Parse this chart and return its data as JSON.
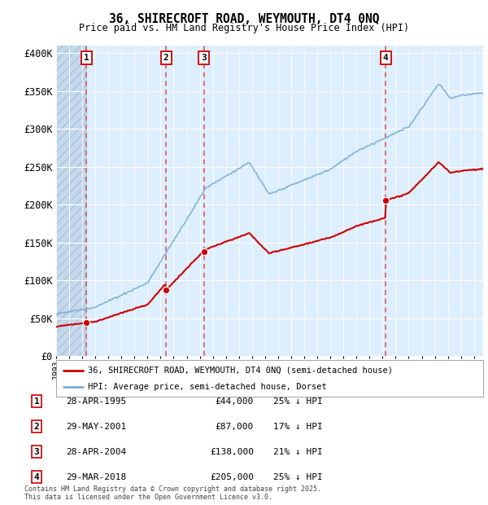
{
  "title": "36, SHIRECROFT ROAD, WEYMOUTH, DT4 0NQ",
  "subtitle": "Price paid vs. HM Land Registry's House Price Index (HPI)",
  "ylabel_ticks": [
    "£0",
    "£50K",
    "£100K",
    "£150K",
    "£200K",
    "£250K",
    "£300K",
    "£350K",
    "£400K"
  ],
  "ytick_values": [
    0,
    50000,
    100000,
    150000,
    200000,
    250000,
    300000,
    350000,
    400000
  ],
  "ylim": [
    0,
    410000
  ],
  "xlim_start": 1993.0,
  "xlim_end": 2025.7,
  "transactions": [
    {
      "num": 1,
      "date": "28-APR-1995",
      "price": 44000,
      "year": 1995.32,
      "pct": "25%",
      "dir": "↓"
    },
    {
      "num": 2,
      "date": "29-MAY-2001",
      "price": 87000,
      "year": 2001.41,
      "pct": "17%",
      "dir": "↓"
    },
    {
      "num": 3,
      "date": "28-APR-2004",
      "price": 138000,
      "year": 2004.32,
      "pct": "21%",
      "dir": "↓"
    },
    {
      "num": 4,
      "date": "29-MAR-2018",
      "price": 205000,
      "year": 2018.24,
      "pct": "25%",
      "dir": "↓"
    }
  ],
  "hpi_color": "#7bafd4",
  "price_color": "#cc0000",
  "vline_color": "#dd3333",
  "box_edge_color": "#cc0000",
  "hatched_region_end": 1995.32,
  "legend_label_price": "36, SHIRECROFT ROAD, WEYMOUTH, DT4 0NQ (semi-detached house)",
  "legend_label_hpi": "HPI: Average price, semi-detached house, Dorset",
  "footer": "Contains HM Land Registry data © Crown copyright and database right 2025.\nThis data is licensed under the Open Government Licence v3.0.",
  "background_color": "#ddeeff",
  "grid_color": "#ffffff"
}
